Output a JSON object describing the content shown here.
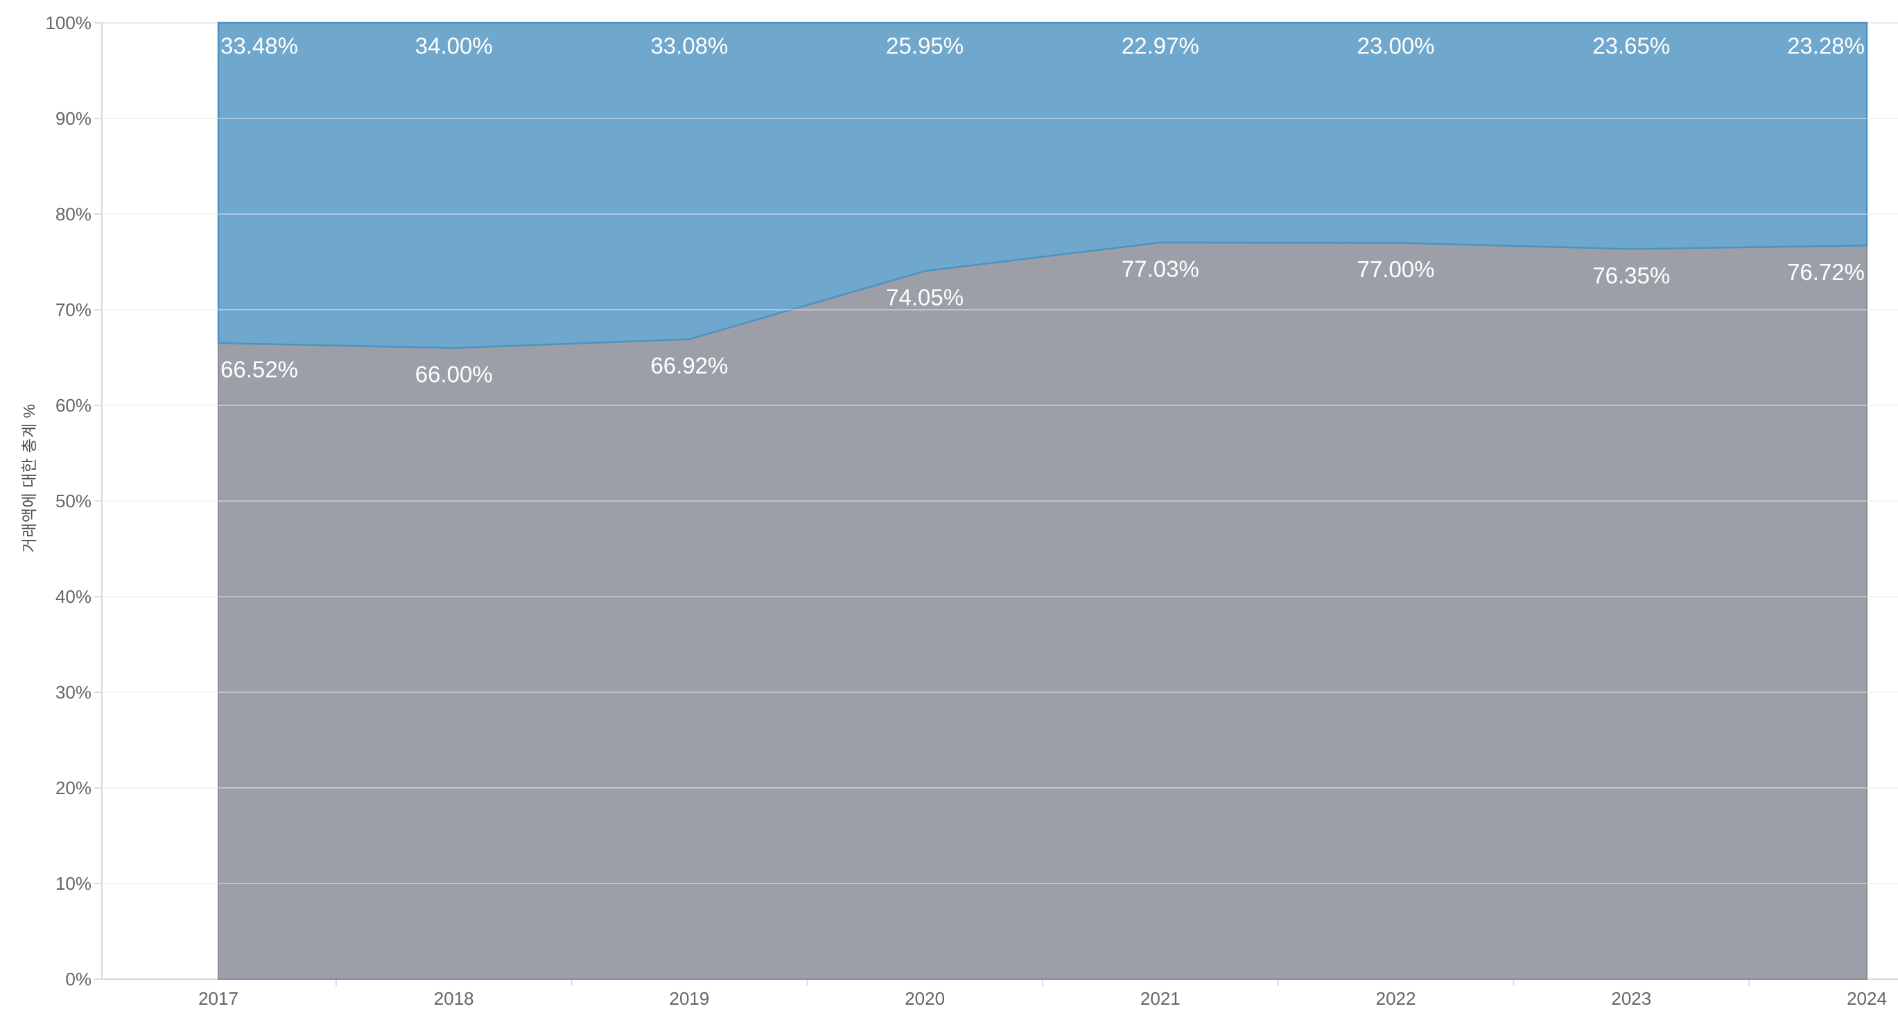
{
  "y_axis": {
    "title": "거래액에 대한 총계 %",
    "tick_labels": [
      "0%",
      "10%",
      "20%",
      "30%",
      "40%",
      "50%",
      "60%",
      "70%",
      "80%",
      "90%",
      "100%"
    ]
  },
  "x_axis": {
    "tick_labels": [
      "2017",
      "2018",
      "2019",
      "2020",
      "2021",
      "2022",
      "2023",
      "2024"
    ]
  },
  "chart_data": {
    "type": "area",
    "stacked": "100%",
    "x": [
      2017,
      2018,
      2019,
      2020,
      2021,
      2022,
      2023,
      2024
    ],
    "series": [
      {
        "name": "bottom-gray-segment",
        "color": "#9C9FA7",
        "border_color": "#878B95",
        "values": [
          66.52,
          66.0,
          66.92,
          74.05,
          77.03,
          77.0,
          76.35,
          76.72
        ],
        "labels": [
          "66.52%",
          "66.00%",
          "66.92%",
          "74.05%",
          "77.03%",
          "77.00%",
          "76.35%",
          "76.72%"
        ]
      },
      {
        "name": "top-blue-segment",
        "color": "#6FA8CC",
        "border_color": "#4B93C5",
        "values": [
          33.48,
          34.0,
          33.08,
          25.95,
          22.97,
          23.0,
          23.65,
          23.28
        ],
        "labels": [
          "33.48%",
          "34.00%",
          "33.08%",
          "25.95%",
          "22.97%",
          "23.00%",
          "23.65%",
          "23.28%"
        ]
      }
    ],
    "title": "",
    "xlabel": "",
    "ylabel": "거래액에 대한 총계 %",
    "ylim": [
      0,
      100
    ],
    "y_tick_step": 10,
    "grid": true,
    "legend": false
  },
  "colors": {
    "background": "#FFFFFF",
    "gridline": "#ECECEC",
    "gridline_over_area": "rgba(255,255,255,0.38)",
    "axis_line": "#D9D9D9",
    "tick_mark": "#DCDCDC",
    "tick_label": "#666666",
    "data_label": "#FFFFFF",
    "y_axis_title": "#4A4A4A"
  }
}
